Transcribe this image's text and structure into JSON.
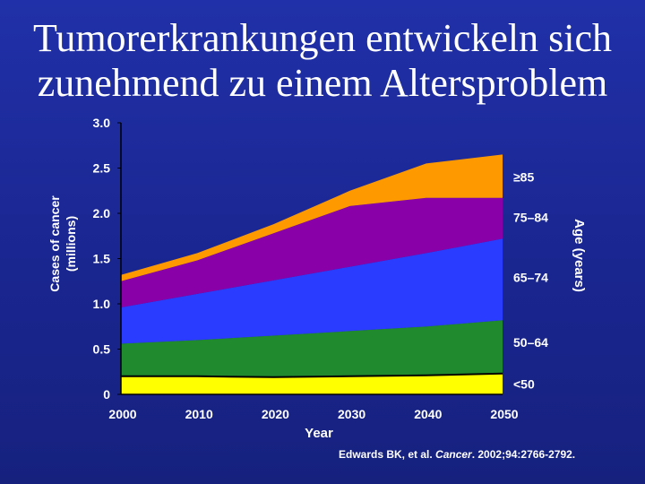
{
  "title_lines": [
    "Tumorerkrankungen entwickeln sich",
    "zunehmend zu einem Altersproblem"
  ],
  "chart_data": {
    "type": "area",
    "stacked": true,
    "ylabel_lines": [
      "Cases of cancer",
      "(millions)"
    ],
    "xlabel": "Year",
    "right_axis_label": "Age (years)",
    "ylim": [
      0,
      3.0
    ],
    "xlim": [
      2000,
      2050
    ],
    "y_ticks": [
      "3.0",
      "2.5",
      "2.0",
      "1.5",
      "1.0",
      "0.5",
      "0"
    ],
    "x_ticks": [
      "2000",
      "2010",
      "2020",
      "2030",
      "2040",
      "2050"
    ],
    "x": [
      2000,
      2010,
      2020,
      2030,
      2040,
      2050
    ],
    "series": [
      {
        "name": "<50",
        "color": "#ffff00",
        "values": [
          0.2,
          0.2,
          0.19,
          0.2,
          0.21,
          0.23
        ]
      },
      {
        "name": "50–64",
        "color": "#1f8a2e",
        "values": [
          0.36,
          0.4,
          0.46,
          0.5,
          0.54,
          0.59
        ]
      },
      {
        "name": "65–74",
        "color": "#2a3cff",
        "values": [
          0.4,
          0.51,
          0.61,
          0.71,
          0.81,
          0.9
        ]
      },
      {
        "name": "75–84",
        "color": "#8a00a8",
        "values": [
          0.29,
          0.37,
          0.52,
          0.67,
          0.61,
          0.45
        ]
      },
      {
        "name": "≥85",
        "color": "#ff9900",
        "values": [
          0.07,
          0.08,
          0.1,
          0.17,
          0.38,
          0.48
        ]
      }
    ],
    "grid": false
  },
  "citation": {
    "before": "Edwards BK, et al. ",
    "journal": "Cancer",
    "after": ". 2002;94:2766-2792."
  }
}
